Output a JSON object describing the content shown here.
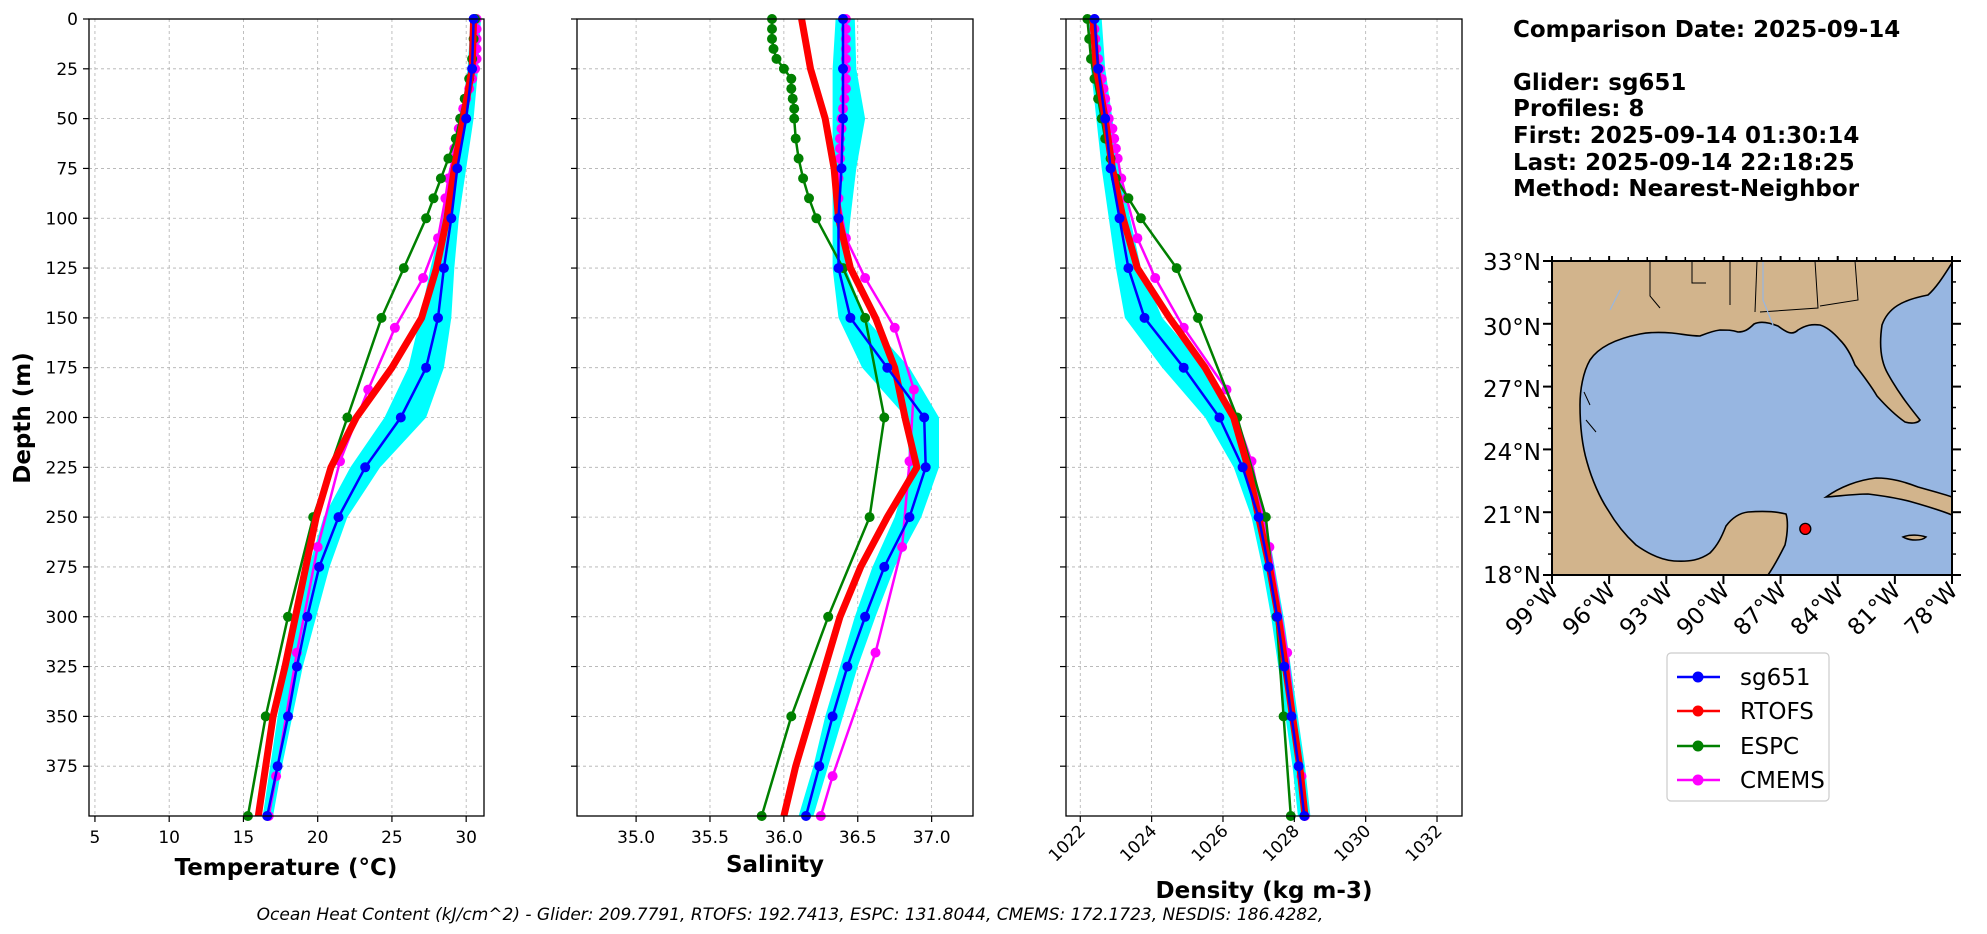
{
  "info": {
    "comparison": "Comparison Date: 2025-09-14",
    "glider": "Glider: sg651",
    "profiles": "Profiles: 8",
    "first": "First: 2025-09-14 01:30:14",
    "last": "Last: 2025-09-14 22:18:25",
    "method": "Method: Nearest-Neighbor"
  },
  "footer": "Ocean Heat Content (kJ/cm^2) - Glider: 209.7791,  RTOFS: 192.7413,  ESPC: 131.8044,  CMEMS: 172.1723,  NESDIS: 186.4282,",
  "colors": {
    "sg651": "#0000ff",
    "rtofs": "#ff0000",
    "espc": "#008000",
    "cmems": "#ff00ff",
    "glider_band": "#00ffff",
    "land": "#d2b48c",
    "ocean": "#97b6e1",
    "marker": "#ff0000"
  },
  "chart_data": [
    {
      "type": "line",
      "xlabel": "Temperature (°C)",
      "ylabel": "Depth (m)",
      "xlim": [
        4.6,
        31.2
      ],
      "ylim": [
        400,
        0
      ],
      "xticks": [
        5,
        10,
        15,
        20,
        25,
        30
      ],
      "yticks": [
        0,
        25,
        50,
        75,
        100,
        125,
        150,
        175,
        200,
        225,
        250,
        275,
        300,
        325,
        350,
        375
      ],
      "band": {
        "name": "sg651 spread",
        "depth": [
          0,
          25,
          50,
          75,
          100,
          125,
          150,
          175,
          200,
          225,
          250,
          275,
          300,
          325,
          350,
          375,
          400
        ],
        "low": [
          30.3,
          30.1,
          29.6,
          28.9,
          28.4,
          27.6,
          26.9,
          26.1,
          24.5,
          22.2,
          20.4,
          19.4,
          18.6,
          17.9,
          17.3,
          16.8,
          16.3
        ],
        "high": [
          31.0,
          30.8,
          30.5,
          30.0,
          29.5,
          29.2,
          29.0,
          28.5,
          27.3,
          24.2,
          22.0,
          20.8,
          19.9,
          19.0,
          18.3,
          17.6,
          17.0
        ]
      },
      "series": [
        {
          "name": "sg651",
          "key": "sg651",
          "width": 2.5,
          "marker": 5,
          "depth": [
            0,
            25,
            50,
            75,
            100,
            125,
            150,
            175,
            200,
            225,
            250,
            275,
            300,
            325,
            350,
            375,
            400
          ],
          "values": [
            30.5,
            30.4,
            30.0,
            29.4,
            29.0,
            28.5,
            28.1,
            27.3,
            25.6,
            23.2,
            21.4,
            20.1,
            19.3,
            18.6,
            18.0,
            17.3,
            16.6
          ]
        },
        {
          "name": "RTOFS",
          "key": "rtofs",
          "width": 7,
          "marker": 0,
          "depth": [
            0,
            25,
            50,
            75,
            100,
            125,
            150,
            175,
            200,
            225,
            250,
            275,
            300,
            325,
            350,
            375,
            400
          ],
          "values": [
            30.5,
            30.4,
            29.8,
            29.2,
            28.7,
            28.0,
            27.0,
            25.0,
            22.6,
            20.9,
            19.9,
            19.2,
            18.5,
            17.8,
            17.0,
            16.5,
            16.0
          ]
        },
        {
          "name": "ESPC",
          "key": "espc",
          "width": 2.5,
          "marker": 5,
          "depth": [
            0,
            10,
            20,
            30,
            40,
            50,
            60,
            70,
            80,
            90,
            100,
            125,
            150,
            200,
            250,
            300,
            350,
            400
          ],
          "values": [
            30.6,
            30.5,
            30.4,
            30.2,
            29.9,
            29.6,
            29.3,
            28.8,
            28.3,
            27.8,
            27.3,
            25.8,
            24.3,
            22.0,
            19.7,
            18.0,
            16.5,
            15.3
          ]
        },
        {
          "name": "CMEMS",
          "key": "cmems",
          "width": 2.5,
          "marker": 5,
          "depth": [
            0,
            5,
            10,
            15,
            20,
            25,
            30,
            35,
            40,
            45,
            50,
            55,
            60,
            65,
            70,
            80,
            90,
            110,
            130,
            155,
            186,
            222,
            265,
            318,
            380,
            400
          ],
          "values": [
            30.7,
            30.7,
            30.7,
            30.7,
            30.7,
            30.6,
            30.4,
            30.2,
            30.0,
            29.8,
            29.6,
            29.5,
            29.4,
            29.2,
            29.1,
            28.8,
            28.6,
            28.1,
            27.1,
            25.2,
            23.4,
            21.5,
            20.0,
            18.6,
            17.2,
            16.7
          ]
        }
      ]
    },
    {
      "type": "line",
      "xlabel": "Salinity",
      "ylabel": "",
      "xlim": [
        34.6,
        37.28
      ],
      "ylim": [
        400,
        0
      ],
      "xticks": [
        35.0,
        35.5,
        36.0,
        36.5,
        37.0
      ],
      "yticks": [
        0,
        25,
        50,
        75,
        100,
        125,
        150,
        175,
        200,
        225,
        250,
        275,
        300,
        325,
        350,
        375
      ],
      "band": {
        "name": "sg651 spread",
        "depth": [
          0,
          25,
          50,
          75,
          100,
          125,
          150,
          175,
          200,
          225,
          250,
          275,
          300,
          325,
          350,
          375,
          400
        ],
        "low": [
          36.35,
          36.33,
          36.33,
          36.33,
          36.33,
          36.33,
          36.37,
          36.53,
          36.83,
          36.85,
          36.75,
          36.6,
          36.48,
          36.38,
          36.28,
          36.2,
          36.1
        ],
        "high": [
          36.48,
          36.49,
          36.55,
          36.49,
          36.45,
          36.42,
          36.55,
          36.85,
          37.05,
          37.05,
          36.93,
          36.75,
          36.62,
          36.5,
          36.4,
          36.3,
          36.2
        ]
      },
      "series": [
        {
          "name": "sg651",
          "key": "sg651",
          "width": 2.5,
          "marker": 5,
          "depth": [
            0,
            25,
            50,
            75,
            100,
            125,
            150,
            175,
            200,
            225,
            250,
            275,
            300,
            325,
            350,
            375,
            400
          ],
          "values": [
            36.4,
            36.4,
            36.4,
            36.39,
            36.37,
            36.37,
            36.45,
            36.7,
            36.95,
            36.96,
            36.85,
            36.68,
            36.55,
            36.43,
            36.33,
            36.24,
            36.15
          ]
        },
        {
          "name": "RTOFS",
          "key": "rtofs",
          "width": 7,
          "marker": 0,
          "depth": [
            0,
            25,
            50,
            75,
            100,
            125,
            150,
            175,
            200,
            225,
            250,
            275,
            300,
            325,
            350,
            375,
            400
          ],
          "values": [
            36.12,
            36.18,
            36.28,
            36.34,
            36.37,
            36.45,
            36.62,
            36.75,
            36.82,
            36.9,
            36.7,
            36.52,
            36.38,
            36.28,
            36.18,
            36.08,
            36.0
          ]
        },
        {
          "name": "ESPC",
          "key": "espc",
          "width": 2.5,
          "marker": 5,
          "depth": [
            0,
            5,
            10,
            15,
            20,
            25,
            30,
            35,
            40,
            45,
            50,
            60,
            70,
            80,
            90,
            100,
            125,
            150,
            200,
            250,
            300,
            350,
            400
          ],
          "values": [
            35.92,
            35.92,
            35.92,
            35.93,
            35.95,
            36.0,
            36.05,
            36.05,
            36.06,
            36.07,
            36.07,
            36.08,
            36.1,
            36.13,
            36.17,
            36.22,
            36.4,
            36.55,
            36.68,
            36.58,
            36.3,
            36.05,
            35.85
          ]
        },
        {
          "name": "CMEMS",
          "key": "cmems",
          "width": 2.5,
          "marker": 5,
          "depth": [
            0,
            5,
            10,
            15,
            20,
            25,
            30,
            35,
            40,
            45,
            50,
            55,
            60,
            65,
            70,
            80,
            90,
            110,
            130,
            155,
            186,
            222,
            265,
            318,
            380,
            400
          ],
          "values": [
            36.42,
            36.42,
            36.42,
            36.42,
            36.42,
            36.42,
            36.42,
            36.42,
            36.41,
            36.4,
            36.39,
            36.39,
            36.38,
            36.38,
            36.38,
            36.37,
            36.37,
            36.42,
            36.55,
            36.75,
            36.88,
            36.85,
            36.8,
            36.62,
            36.33,
            36.25
          ]
        }
      ]
    },
    {
      "type": "line",
      "xlabel": "Density (kg m-3)",
      "ylabel": "",
      "xlim": [
        1021.6,
        1032.7
      ],
      "ylim": [
        400,
        0
      ],
      "xticks": [
        1022,
        1024,
        1026,
        1028,
        1030,
        1032
      ],
      "yticks": [
        0,
        25,
        50,
        75,
        100,
        125,
        150,
        175,
        200,
        225,
        250,
        275,
        300,
        325,
        350,
        375
      ],
      "band": {
        "name": "sg651 spread",
        "depth": [
          0,
          25,
          50,
          75,
          100,
          125,
          150,
          175,
          200,
          225,
          250,
          275,
          300,
          325,
          350,
          375,
          400
        ],
        "low": [
          1022.2,
          1022.3,
          1022.45,
          1022.6,
          1022.8,
          1023.0,
          1023.25,
          1024.3,
          1025.5,
          1026.3,
          1026.8,
          1027.1,
          1027.35,
          1027.55,
          1027.75,
          1027.95,
          1028.1
        ],
        "high": [
          1022.6,
          1022.7,
          1022.9,
          1023.1,
          1023.4,
          1023.7,
          1024.3,
          1025.5,
          1026.3,
          1026.8,
          1027.2,
          1027.45,
          1027.7,
          1027.9,
          1028.1,
          1028.3,
          1028.45
        ]
      },
      "series": [
        {
          "name": "sg651",
          "key": "sg651",
          "width": 2.5,
          "marker": 5,
          "depth": [
            0,
            25,
            50,
            75,
            100,
            125,
            150,
            175,
            200,
            225,
            250,
            275,
            300,
            325,
            350,
            375,
            400
          ],
          "values": [
            1022.4,
            1022.5,
            1022.7,
            1022.85,
            1023.1,
            1023.35,
            1023.8,
            1024.9,
            1025.9,
            1026.55,
            1027.0,
            1027.28,
            1027.52,
            1027.72,
            1027.92,
            1028.12,
            1028.28
          ]
        },
        {
          "name": "RTOFS",
          "key": "rtofs",
          "width": 7,
          "marker": 0,
          "depth": [
            0,
            25,
            50,
            75,
            100,
            125,
            150,
            175,
            200,
            225,
            250,
            275,
            300,
            325,
            350,
            375,
            400
          ],
          "values": [
            1022.35,
            1022.45,
            1022.7,
            1022.9,
            1023.2,
            1023.6,
            1024.5,
            1025.5,
            1026.3,
            1026.7,
            1027.0,
            1027.3,
            1027.55,
            1027.75,
            1027.95,
            1028.15,
            1028.3
          ]
        },
        {
          "name": "ESPC",
          "key": "espc",
          "width": 2.5,
          "marker": 5,
          "depth": [
            0,
            10,
            20,
            30,
            40,
            50,
            60,
            70,
            80,
            90,
            100,
            125,
            150,
            200,
            250,
            300,
            350,
            400
          ],
          "values": [
            1022.2,
            1022.25,
            1022.3,
            1022.4,
            1022.5,
            1022.6,
            1022.7,
            1022.85,
            1023.0,
            1023.35,
            1023.7,
            1024.7,
            1025.3,
            1026.4,
            1027.2,
            1027.5,
            1027.7,
            1027.9
          ]
        },
        {
          "name": "CMEMS",
          "key": "cmems",
          "width": 2.5,
          "marker": 5,
          "depth": [
            0,
            5,
            10,
            15,
            20,
            25,
            30,
            35,
            40,
            45,
            50,
            55,
            60,
            65,
            70,
            80,
            90,
            110,
            130,
            155,
            186,
            222,
            265,
            318,
            380,
            400
          ],
          "values": [
            1022.4,
            1022.4,
            1022.42,
            1022.45,
            1022.5,
            1022.55,
            1022.6,
            1022.65,
            1022.7,
            1022.75,
            1022.8,
            1022.9,
            1022.95,
            1023.0,
            1023.05,
            1023.15,
            1023.3,
            1023.6,
            1024.1,
            1024.9,
            1026.1,
            1026.8,
            1027.3,
            1027.8,
            1028.2,
            1028.3
          ]
        }
      ]
    }
  ],
  "map": {
    "lat_labels": [
      "33°N",
      "30°N",
      "27°N",
      "24°N",
      "21°N",
      "18°N"
    ],
    "lon_labels": [
      "99°W",
      "96°W",
      "93°W",
      "90°W",
      "87°W",
      "84°W",
      "81°W",
      "78°W"
    ],
    "glider_location": {
      "lon": -85.7,
      "lat": 20.2
    }
  },
  "legend": [
    "sg651",
    "RTOFS",
    "ESPC",
    "CMEMS"
  ]
}
